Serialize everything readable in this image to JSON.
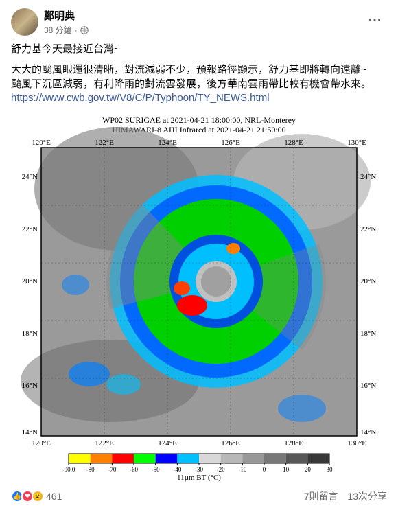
{
  "author": {
    "name": "鄭明典",
    "time": "38 分鐘",
    "privacy": "public"
  },
  "post": {
    "line1": "舒力基今天最接近台灣~",
    "line2": "大大的颱風眼還很清晰，對流減弱不少，預報路徑顯示，舒力基即將轉向遠離~",
    "line3": "颱風下沉區減弱，有利降雨的對流雲發展，後方華南雲雨帶比較有機會帶水來。",
    "link": "https://www.cwb.gov.tw/V8/C/P/Typhoon/TY_NEWS.html"
  },
  "satellite": {
    "title1": "WP02 SURIGAE at 2021-04-21 18:00:00, NRL-Monterey",
    "title2": "HIMAWARI-8 AHI Infrared at 2021-04-21 21:50:00",
    "lons": [
      "120°E",
      "122°E",
      "124°E",
      "126°E",
      "128°E",
      "130°E"
    ],
    "lats": [
      "24°N",
      "22°N",
      "20°N",
      "18°N",
      "16°N",
      "14°N"
    ],
    "scale_label": "11µm BT (°C)",
    "scale_vals": [
      "-90.0",
      "-80",
      "-70",
      "-60",
      "-50",
      "-40",
      "-30",
      "-20",
      "-10",
      "0",
      "10",
      "20",
      "30"
    ],
    "scale_colors": [
      "#ffff00",
      "#ff8000",
      "#ff0000",
      "#00ff00",
      "#0000ff",
      "#00bfff",
      "#d8d8d8",
      "#b8b8b8",
      "#989898",
      "#787878",
      "#585858",
      "#383838",
      "#181818"
    ]
  },
  "reactions": {
    "count": "461",
    "comments": "7則留言",
    "shares": "13次分享"
  }
}
